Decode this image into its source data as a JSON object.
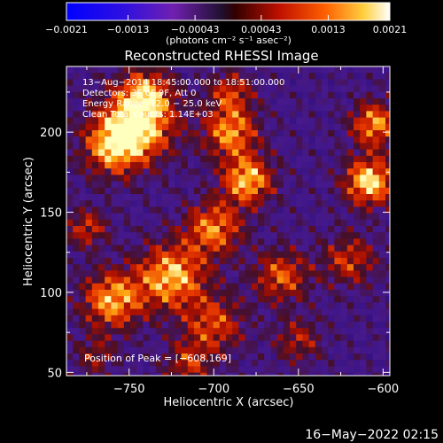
{
  "chart_data": {
    "type": "heatmap",
    "title": "Reconstructed RHESSI Image",
    "xlabel": "Heliocentric X (arcsec)",
    "ylabel": "Heliocentric Y (arcsec)",
    "xlim": [
      -787,
      -596
    ],
    "ylim": [
      48,
      241
    ],
    "xticks": [
      -750,
      -700,
      -650,
      -600
    ],
    "xtick_labels": [
      "−750",
      "−700",
      "−650",
      "−600"
    ],
    "yticks": [
      50,
      100,
      150,
      200
    ],
    "ytick_labels": [
      "50",
      "100",
      "150",
      "200"
    ],
    "colorbar": {
      "min": -0.0021,
      "max": 0.0021,
      "ticks": [
        -0.0021,
        -0.0013,
        -0.00043,
        0.00043,
        0.0013,
        0.0021
      ],
      "tick_labels": [
        "−0.0021",
        "−0.0013",
        "−0.00043",
        "0.00043",
        "0.0013",
        "0.0021"
      ],
      "units_label": "(photons cm⁻² s⁻¹ asec⁻²)"
    },
    "annotations": [
      "13−Aug−2014 18:45:00.000 to 18:51:00.000",
      "Detectors: 3F 6F 9F, Att 0",
      "Energy Range: 12.0 − 25.0 keV",
      "Clean    Total counts: 1.14E+03"
    ],
    "peak_label": "Position of Peak = [−608,169]",
    "peak_position": [
      -608,
      169
    ],
    "timestamp": "16−May−2022 02:15"
  }
}
